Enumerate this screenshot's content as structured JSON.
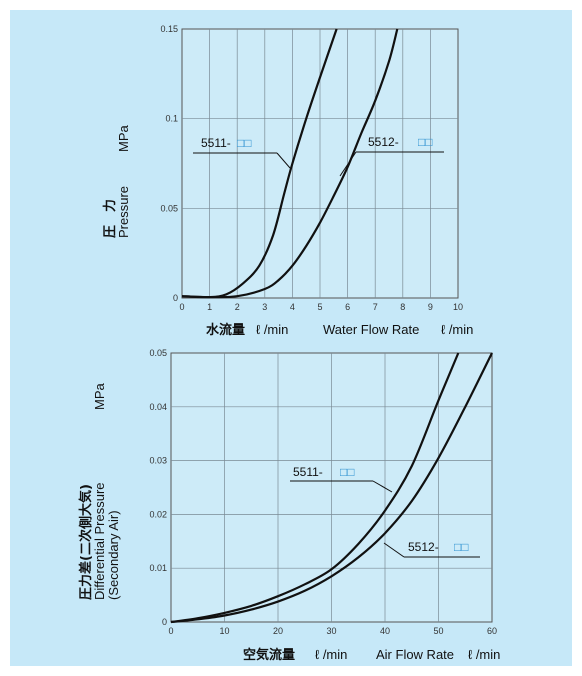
{
  "chart_data": [
    {
      "type": "line",
      "xlabel_jp": "水流量",
      "xlabel_unit": "ℓ /min",
      "xlabel_en": "Water Flow Rate",
      "xlabel_en_unit": "ℓ /min",
      "ylabel_jp": "圧　力",
      "ylabel_en": "Pressure",
      "ylabel_unit": "MPa",
      "xlim": [
        0,
        10
      ],
      "ylim": [
        0,
        0.15
      ],
      "x_ticks": [
        "0",
        "1",
        "2",
        "3",
        "4",
        "5",
        "6",
        "7",
        "8",
        "9",
        "10"
      ],
      "y_ticks": [
        "0",
        "0.05",
        "0.1",
        "0.15"
      ],
      "grid": true,
      "series": [
        {
          "name": "5511-",
          "name_suffix": "□□",
          "points": [
            [
              0,
              0.001
            ],
            [
              1,
              0.0005
            ],
            [
              1.6,
              0.002
            ],
            [
              2.2,
              0.008
            ],
            [
              2.8,
              0.018
            ],
            [
              3.3,
              0.035
            ],
            [
              3.7,
              0.058
            ],
            [
              4,
              0.075
            ],
            [
              4.5,
              0.1
            ],
            [
              5,
              0.123
            ],
            [
              5.6,
              0.15
            ]
          ]
        },
        {
          "name": "5512-",
          "name_suffix": "□□",
          "points": [
            [
              0,
              0.001
            ],
            [
              1,
              0.0005
            ],
            [
              2,
              0.001
            ],
            [
              3,
              0.005
            ],
            [
              3.5,
              0.01
            ],
            [
              4,
              0.018
            ],
            [
              4.5,
              0.029
            ],
            [
              5,
              0.042
            ],
            [
              5.5,
              0.057
            ],
            [
              6,
              0.073
            ],
            [
              6.5,
              0.092
            ],
            [
              7,
              0.11
            ],
            [
              7.5,
              0.132
            ],
            [
              7.8,
              0.15
            ]
          ]
        }
      ]
    },
    {
      "type": "line",
      "xlabel_jp": "空気流量",
      "xlabel_unit": "ℓ /min",
      "xlabel_en": "Air Flow Rate",
      "xlabel_en_unit": "ℓ /min",
      "ylabel_jp": "圧力差(二次側大気)",
      "ylabel_en_1": "Differential Pressure",
      "ylabel_en_2": "(Secondary Air)",
      "ylabel_unit": "MPa",
      "xlim": [
        0,
        60
      ],
      "ylim": [
        0,
        0.05
      ],
      "x_ticks": [
        "0",
        "10",
        "20",
        "30",
        "40",
        "50",
        "60"
      ],
      "y_ticks": [
        "0",
        "0.01",
        "0.02",
        "0.03",
        "0.04",
        "0.05"
      ],
      "grid": true,
      "series": [
        {
          "name": "5511-",
          "name_suffix": "□□",
          "points": [
            [
              0,
              0
            ],
            [
              5,
              0.0007
            ],
            [
              10,
              0.0017
            ],
            [
              15,
              0.003
            ],
            [
              20,
              0.0048
            ],
            [
              25,
              0.007
            ],
            [
              30,
              0.0098
            ],
            [
              35,
              0.0145
            ],
            [
              40,
              0.0207
            ],
            [
              45,
              0.029
            ],
            [
              50,
              0.0412
            ],
            [
              53.7,
              0.05
            ]
          ]
        },
        {
          "name": "5512-",
          "name_suffix": "□□",
          "points": [
            [
              0,
              0
            ],
            [
              5,
              0.0005
            ],
            [
              10,
              0.0012
            ],
            [
              15,
              0.0023
            ],
            [
              20,
              0.0038
            ],
            [
              25,
              0.0058
            ],
            [
              30,
              0.0085
            ],
            [
              35,
              0.012
            ],
            [
              40,
              0.0165
            ],
            [
              45,
              0.0225
            ],
            [
              50,
              0.0305
            ],
            [
              55,
              0.04
            ],
            [
              60,
              0.05
            ]
          ]
        }
      ]
    }
  ]
}
